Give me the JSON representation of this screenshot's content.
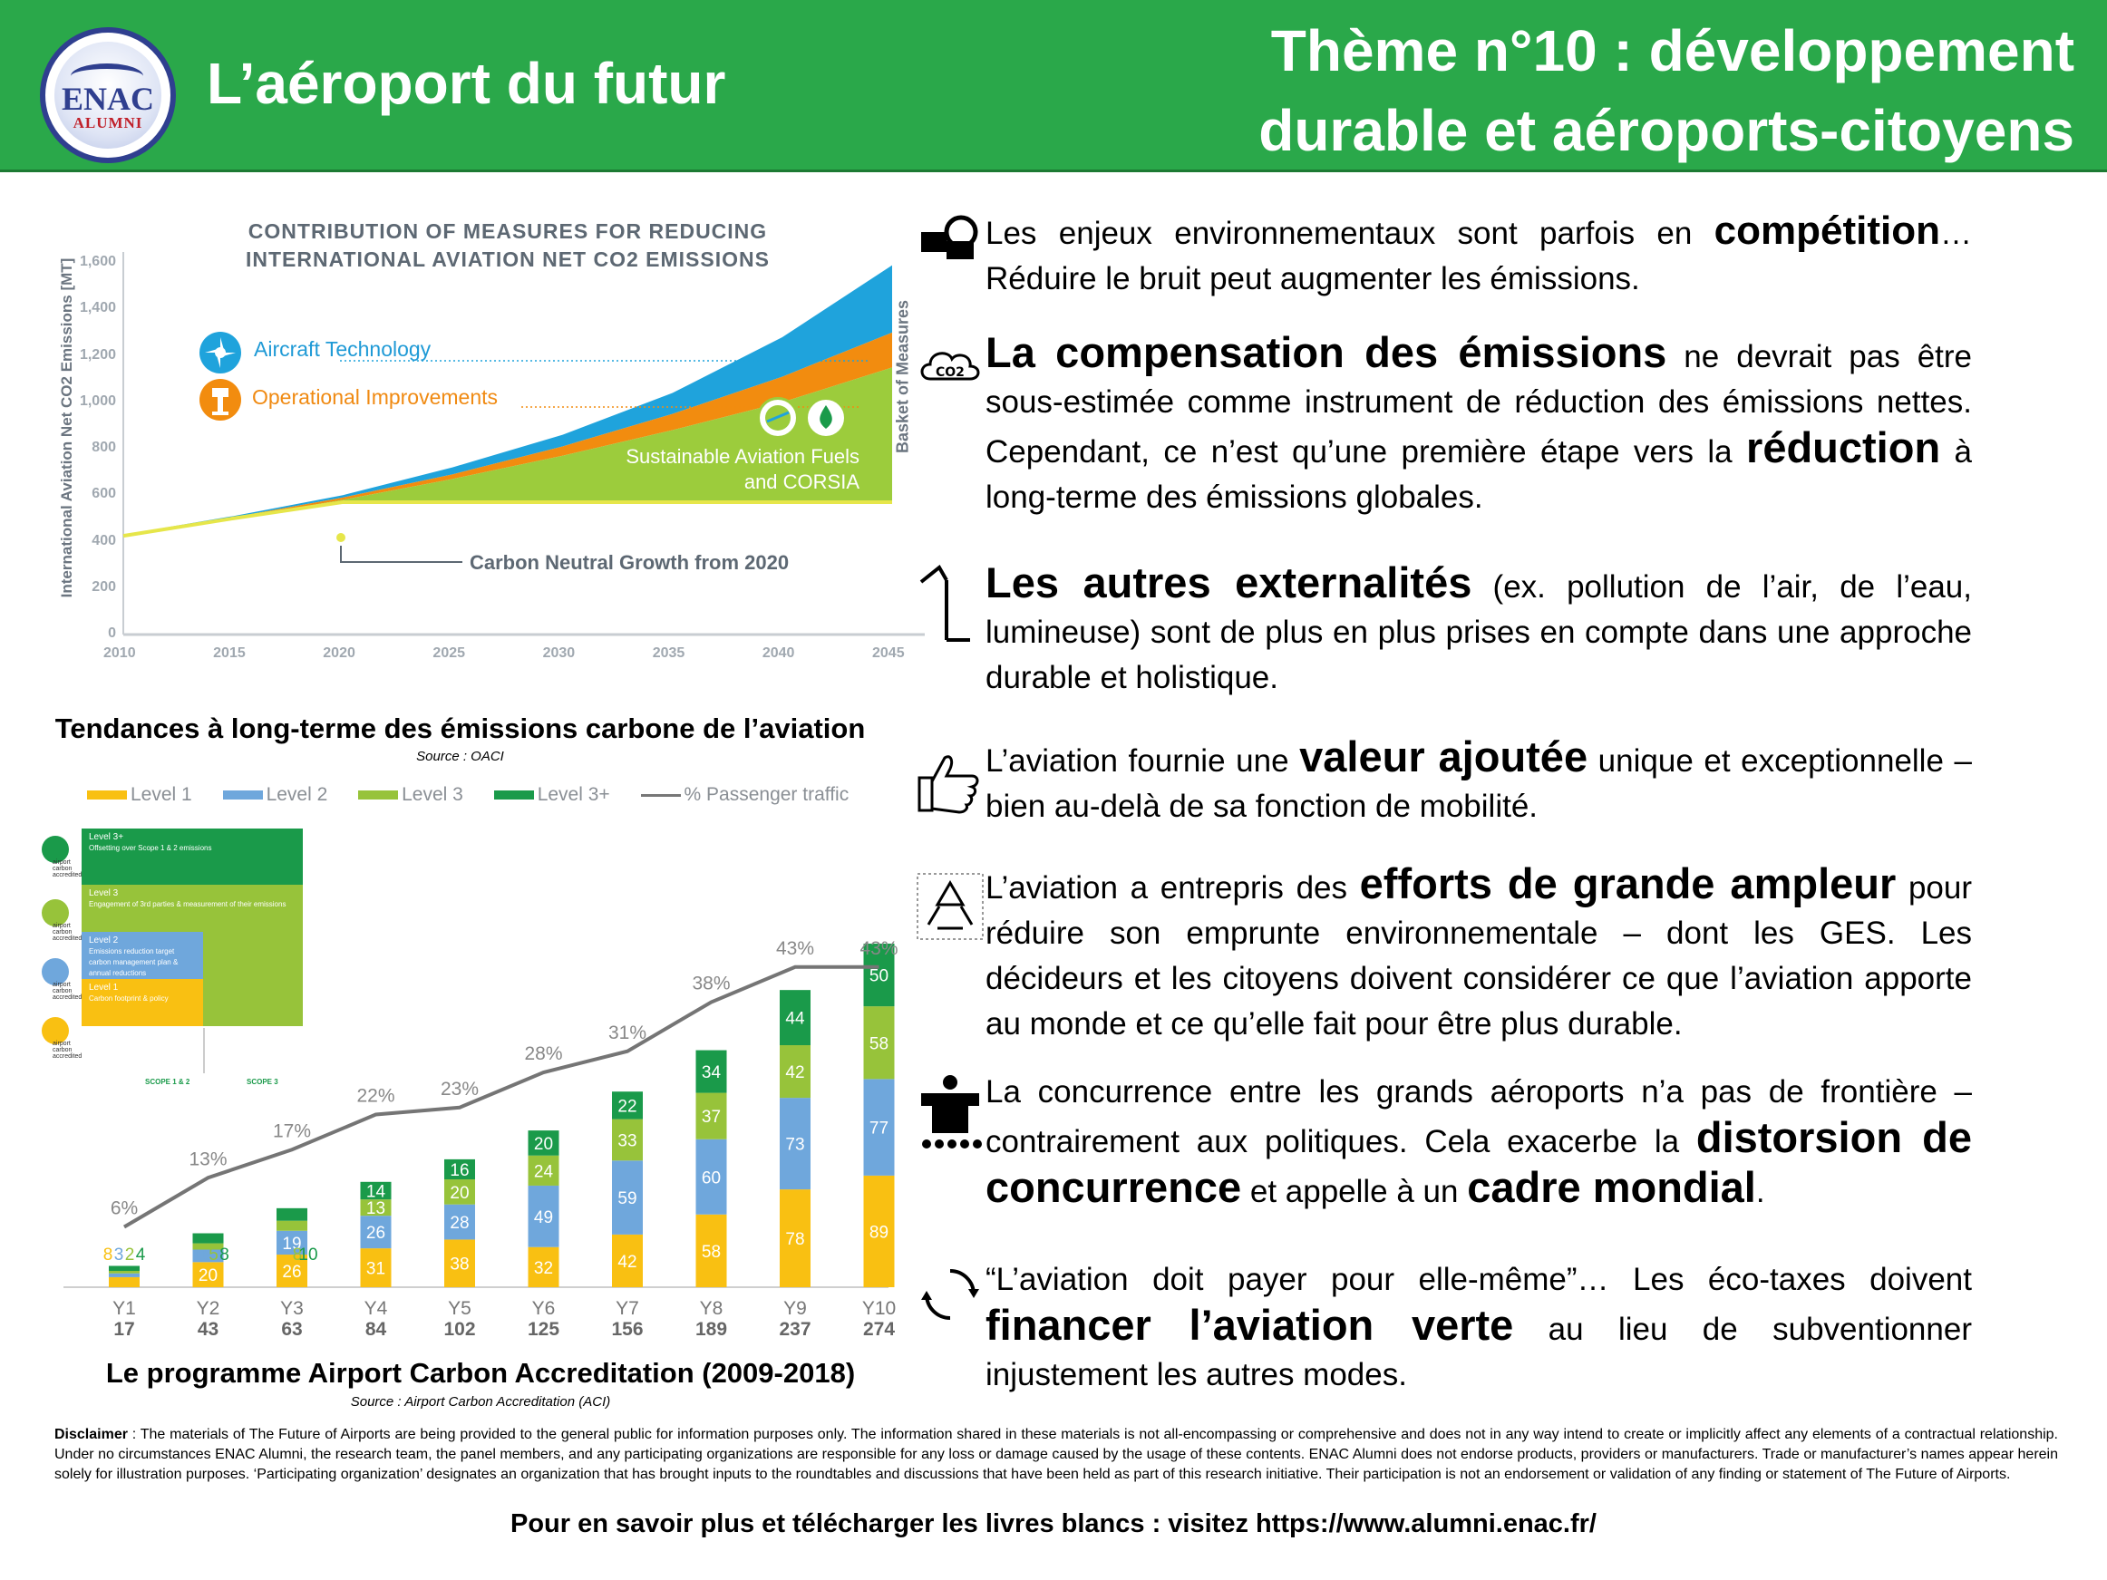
{
  "header": {
    "logo_text": "ENAC",
    "logo_subtext": "ALUMNI",
    "title": "L’aéroport du futur",
    "theme": "Thème n°10 : développement durable et aéroports-citoyens"
  },
  "co2_chart": {
    "title_line1": "CONTRIBUTION OF MEASURES FOR REDUCING",
    "title_line2": "INTERNATIONAL AVIATION NET CO2 EMISSIONS",
    "ylabel": "International Aviation Net CO2 Emissions [MT]",
    "basket_label": "Basket of Measures",
    "aircraft_technology": "Aircraft Technology",
    "operational_improvements": "Operational Improvements",
    "saf_line1": "Sustainable Aviation Fuels",
    "saf_line2": "and CORSIA",
    "carbon_neutral": "Carbon Neutral Growth from 2020",
    "y_ticks": [
      "1,600",
      "1,400",
      "1,200",
      "1,000",
      "800",
      "600",
      "400",
      "200",
      "0"
    ],
    "x_ticks": [
      "2010",
      "2015",
      "2020",
      "2025",
      "2030",
      "2035",
      "2040",
      "2045"
    ],
    "caption": "Tendances à long-terme des émissions carbone de l’aviation",
    "source": "Source : OACI",
    "colors": {
      "blue": "#1fa3dc",
      "orange": "#f28c0f",
      "lightgreen": "#9ccc3c",
      "yellow": "#e6e64a"
    }
  },
  "chart_data": [
    {
      "type": "area",
      "title": "CONTRIBUTION OF MEASURES FOR REDUCING INTERNATIONAL AVIATION NET CO2 EMISSIONS",
      "ylabel": "International Aviation Net CO2 Emissions [MT]",
      "x": [
        2010,
        2015,
        2020,
        2025,
        2030,
        2035,
        2040,
        2045
      ],
      "ylim": [
        0,
        1600
      ],
      "series": [
        {
          "name": "Aircraft Technology",
          "values": [
            430,
            510,
            600,
            720,
            860,
            1040,
            1280,
            1590
          ]
        },
        {
          "name": "Operational Improvements",
          "values": [
            430,
            505,
            590,
            690,
            810,
            950,
            1110,
            1300
          ]
        },
        {
          "name": "Sustainable Aviation Fuels and CORSIA",
          "values": [
            425,
            500,
            580,
            670,
            770,
            880,
            1000,
            1150
          ]
        },
        {
          "name": "Carbon Neutral Growth from 2020",
          "values": [
            425,
            500,
            570,
            570,
            570,
            570,
            570,
            570
          ]
        }
      ]
    },
    {
      "type": "bar",
      "categories": [
        "Y1",
        "Y2",
        "Y3",
        "Y4",
        "Y5",
        "Y6",
        "Y7",
        "Y8",
        "Y9",
        "Y10"
      ],
      "totals": [
        "17",
        "43",
        "63",
        "84",
        "102",
        "125",
        "156",
        "189",
        "237",
        "274"
      ],
      "series": [
        {
          "name": "Level 1",
          "values": [
            8,
            20,
            26,
            31,
            38,
            32,
            42,
            58,
            78,
            89
          ]
        },
        {
          "name": "Level 2",
          "values": [
            3,
            10,
            19,
            26,
            28,
            49,
            59,
            60,
            73,
            77
          ]
        },
        {
          "name": "Level 3",
          "values": [
            2,
            5,
            8,
            13,
            20,
            24,
            33,
            37,
            42,
            58
          ]
        },
        {
          "name": "Level 3+",
          "values": [
            4,
            8,
            10,
            14,
            16,
            20,
            22,
            34,
            44,
            50
          ]
        },
        {
          "name": "% Passenger traffic",
          "values": [
            6,
            13,
            17,
            22,
            23,
            28,
            31,
            38,
            43,
            43
          ]
        }
      ],
      "line_labels": [
        "6%",
        "13%",
        "17%",
        "22%",
        "23%",
        "28%",
        "31%",
        "38%",
        "43%",
        "43%"
      ],
      "ylim": [
        0,
        300
      ],
      "line_ylim": [
        0,
        60
      ]
    }
  ],
  "aca_chart": {
    "legend": [
      "Level 1",
      "Level 2",
      "Level 3",
      "Level 3+",
      "% Passenger traffic"
    ],
    "colors": {
      "l1": "#f9c012",
      "l2": "#6fa7dc",
      "l3": "#97c33a",
      "l3p": "#1a9a4a",
      "line": "#757575"
    },
    "inset": {
      "l3p_title": "Level 3+",
      "l3p_desc": "Offsetting over Scope 1 & 2 emissions",
      "l3_title": "Level 3",
      "l3_desc": "Engagement of 3rd parties & measurement of their emissions",
      "l2_title": "Level 2",
      "l2_desc": "Emissions reduction target carbon management plan & annual reductions",
      "l1_title": "Level 1",
      "l1_desc": "Carbon footprint & policy",
      "scope1": "SCOPE 1 & 2",
      "scope2": "SCOPE 3",
      "logo_text": "airport carbon accredited"
    },
    "caption": "Le programme Airport Carbon Accreditation (2009-2018)",
    "source": "Source : Airport Carbon Accreditation (ACI)"
  },
  "right": {
    "p1_a": "Les enjeux environnementaux sont parfois en ",
    "p1_b": "compétition",
    "p1_c": "… Réduire le bruit peut augmenter les émissions.",
    "p2_a": "La compensation des émissions",
    "p2_b": " ne devrait pas être sous-estimée comme instrument de réduction des émissions nettes. Cependant, ce n’est qu’une première étape vers la ",
    "p2_c": "réduction",
    "p2_d": " à long-terme des émissions globales.",
    "p3_a": "Les autres externalités",
    "p3_b": " (ex. pollution de l’air, de l’eau, lumineuse) sont de plus en plus prises en compte dans une approche durable et holistique.",
    "p4_a": "L’aviation fournie une ",
    "p4_b": "valeur ajoutée",
    "p4_c": " unique et exceptionnelle – bien au-delà de sa fonction de mobilité.",
    "p5_a": "L’aviation a entrepris des ",
    "p5_b": "efforts de grande ampleur",
    "p5_c": " pour réduire son emprunte environnementale – dont les GES. Les décideurs et les citoyens doivent considérer ce que l’aviation apporte au monde et ce qu’elle fait pour être plus durable.",
    "p6_a": "La concurrence entre les grands aéroports n’a pas de frontière – contrairement aux politiques. Cela exacerbe la ",
    "p6_b": "distorsion de concurrence",
    "p6_c": " et appelle à un ",
    "p6_d": "cadre mondial",
    "p6_e": ".",
    "p7_a": "“L’aviation doit payer pour elle-même”… Les éco-taxes doivent ",
    "p7_b": "financer l’aviation verte",
    "p7_c": " au lieu de subventionner injustement les autres modes.",
    "co2_icon_text": "CO2"
  },
  "disclaimer_label": "Disclaimer",
  "disclaimer": " : The materials of The Future of Airports are being provided to the general public for information purposes only. The information shared in these materials is not all-encompassing or comprehensive and does not in any way intend to create or implicitly affect any elements of a contractual relationship. Under no circumstances ENAC Alumni, the research team, the panel members, and any participating organizations are responsible for any loss or damage caused by the usage of these contents. ENAC Alumni does not endorse products, providers or manufacturers. Trade or manufacturer’s names appear herein solely for illustration purposes. ‘Participating organization’ designates an organization that has brought inputs to the roundtables and discussions that have been held as part of this research initiative. Their participation is not an endorsement or validation of any finding or statement of The Future of Airports.",
  "footer": "Pour en savoir plus et télécharger les livres blancs : visitez https://www.alumni.enac.fr/"
}
